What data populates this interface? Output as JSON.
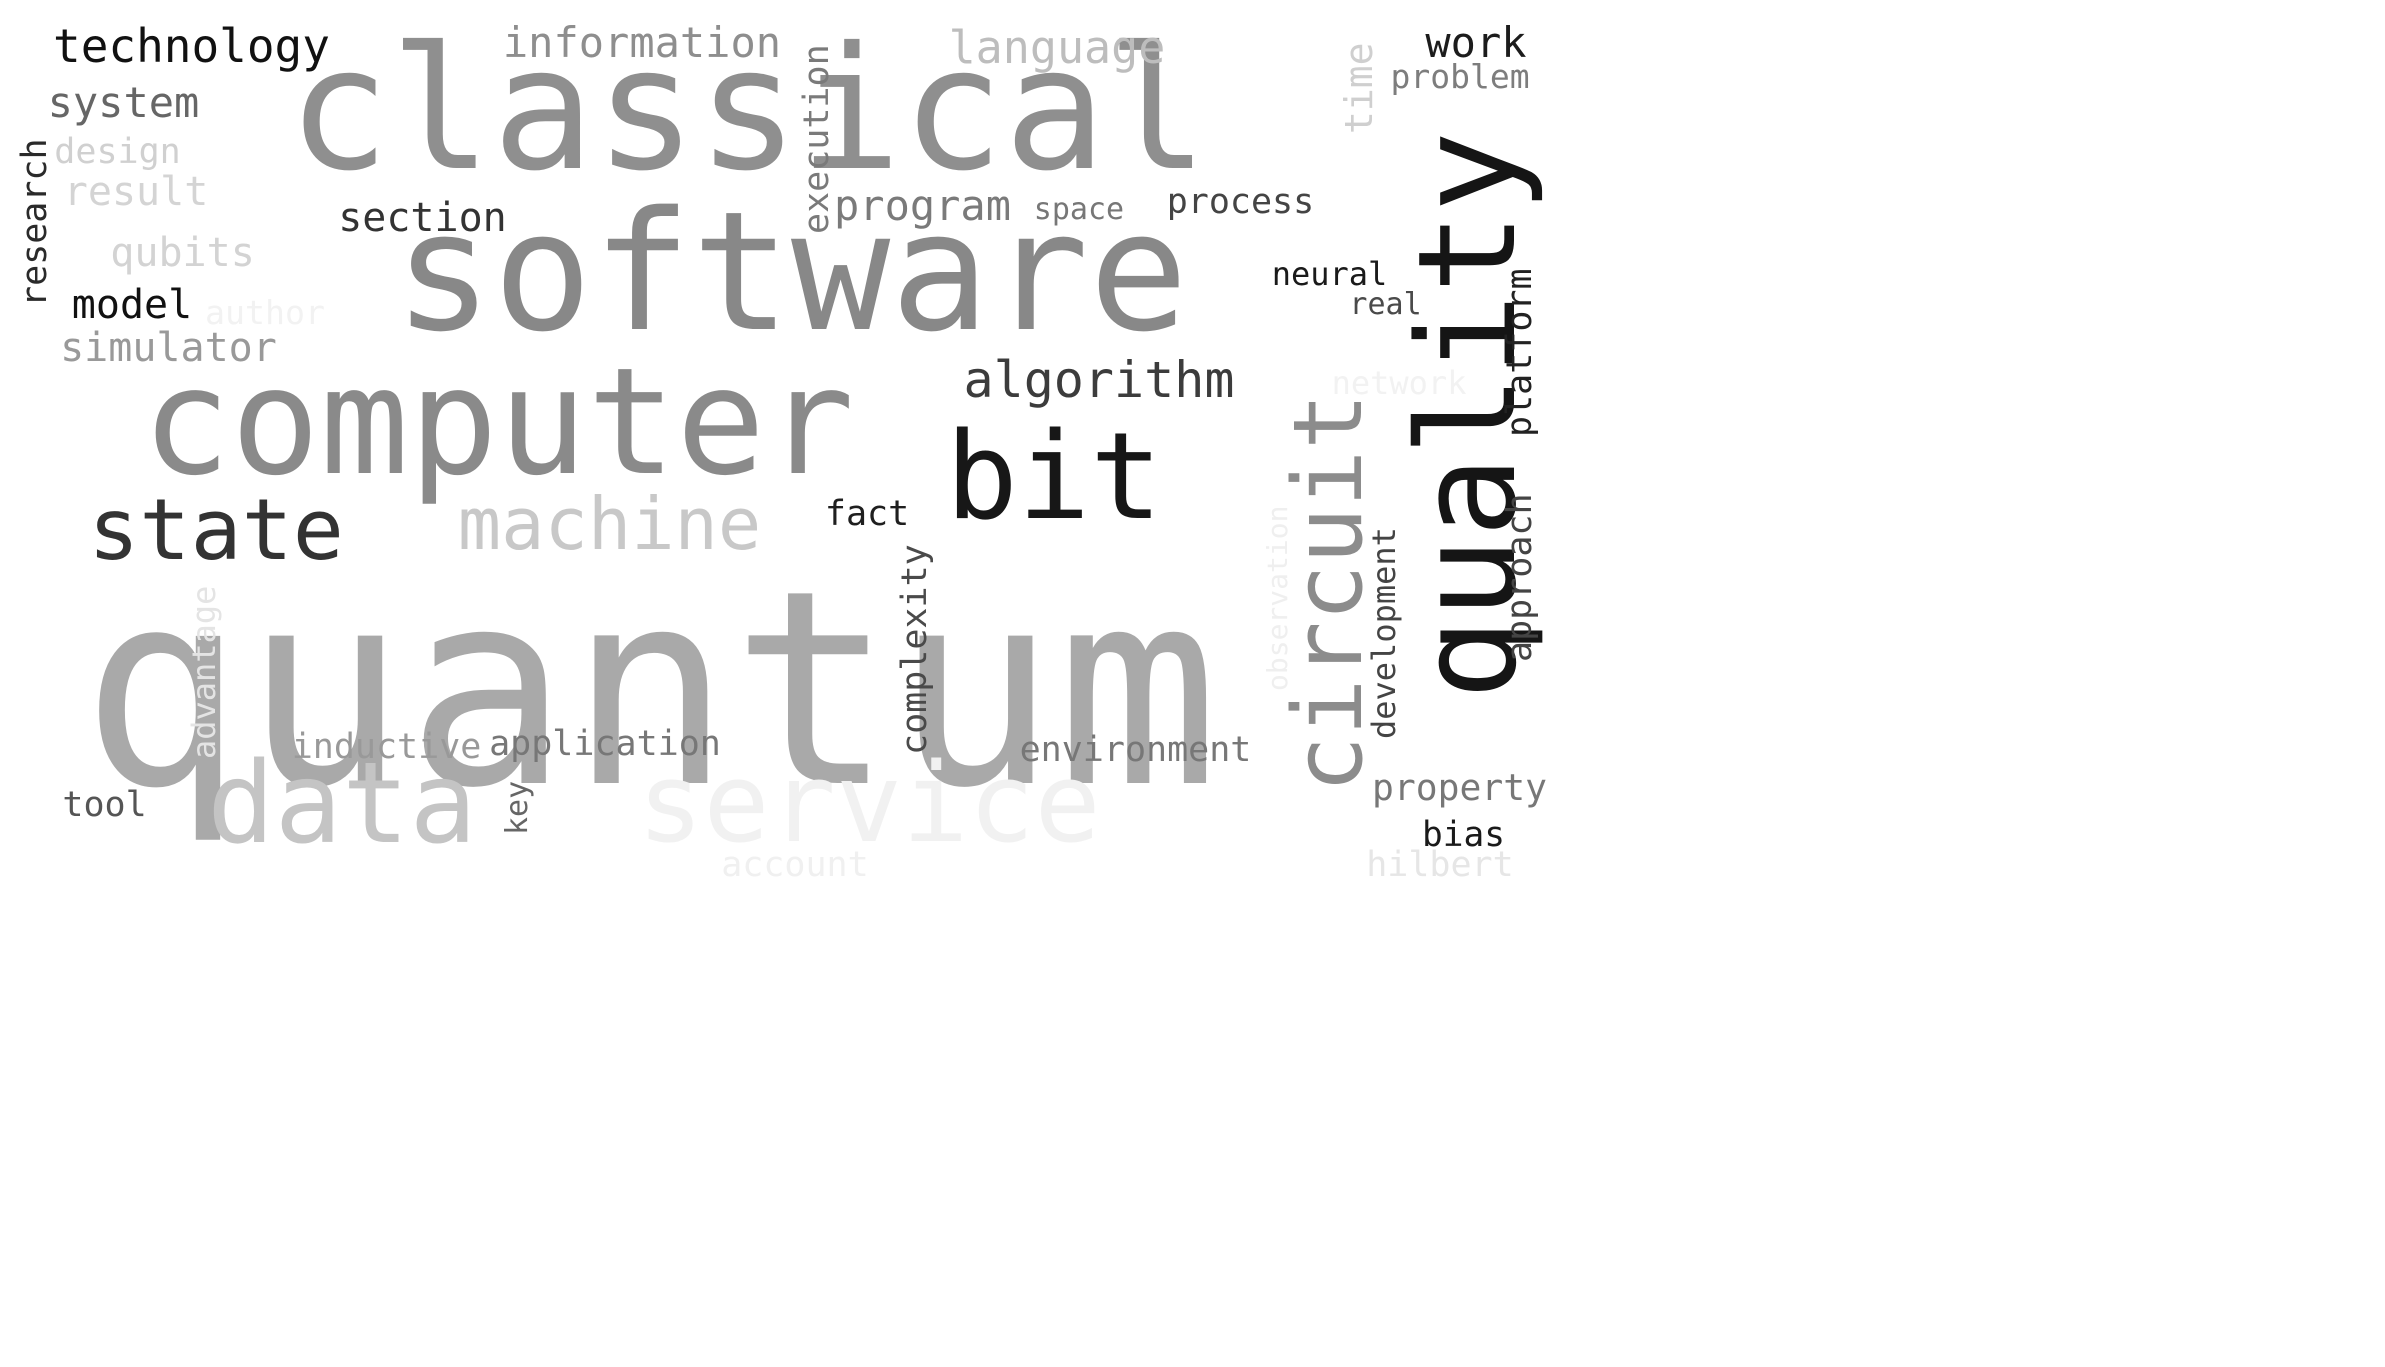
{
  "words": [
    {
      "text": "quantum",
      "color": "#a9a9a9"
    },
    {
      "text": "software",
      "color": "#888888"
    },
    {
      "text": "classical",
      "color": "#8f8f8f"
    },
    {
      "text": "computer",
      "color": "#8a8a8a"
    },
    {
      "text": "quality",
      "color": "#151515"
    },
    {
      "text": "circuit",
      "color": "#8c8c8c"
    },
    {
      "text": "bit",
      "color": "#171717"
    },
    {
      "text": "service",
      "color": "#f1f1f1"
    },
    {
      "text": "state",
      "color": "#333333"
    },
    {
      "text": "data",
      "color": "#c4c4c4"
    },
    {
      "text": "machine",
      "color": "#c8c8c8"
    },
    {
      "text": "algorithm",
      "color": "#3c3c3c"
    },
    {
      "text": "technology",
      "color": "#111111"
    },
    {
      "text": "information",
      "color": "#8e8e8e"
    },
    {
      "text": "language",
      "color": "#bdbdbd"
    },
    {
      "text": "work",
      "color": "#1c1c1c"
    },
    {
      "text": "problem",
      "color": "#7d7d7d"
    },
    {
      "text": "time",
      "color": "#cfcfcf"
    },
    {
      "text": "system",
      "color": "#666666"
    },
    {
      "text": "design",
      "color": "#d0d0d0"
    },
    {
      "text": "research",
      "color": "#2a2a2a"
    },
    {
      "text": "result",
      "color": "#d4d4d4"
    },
    {
      "text": "execution",
      "color": "#7a7a7a"
    },
    {
      "text": "program",
      "color": "#7a7a7a"
    },
    {
      "text": "space",
      "color": "#777777"
    },
    {
      "text": "process",
      "color": "#444444"
    },
    {
      "text": "section",
      "color": "#333333"
    },
    {
      "text": "qubits",
      "color": "#d3d3d3"
    },
    {
      "text": "model",
      "color": "#111111"
    },
    {
      "text": "author",
      "color": "#f2f2f2"
    },
    {
      "text": "simulator",
      "color": "#999999"
    },
    {
      "text": "neural",
      "color": "#1a1a1a"
    },
    {
      "text": "real",
      "color": "#4a4a4a"
    },
    {
      "text": "network",
      "color": "#f2f2f2"
    },
    {
      "text": "platform",
      "color": "#222222"
    },
    {
      "text": "approach",
      "color": "#444444"
    },
    {
      "text": "fact",
      "color": "#1f1f1f"
    },
    {
      "text": "complexity",
      "color": "#4a4a4a"
    },
    {
      "text": "observation",
      "color": "#efefef"
    },
    {
      "text": "development",
      "color": "#444444"
    },
    {
      "text": "advantage",
      "color": "#e4e4e4"
    },
    {
      "text": "inductive",
      "color": "#999999"
    },
    {
      "text": "application",
      "color": "#777777"
    },
    {
      "text": "environment",
      "color": "#777777"
    },
    {
      "text": "tool",
      "color": "#555555"
    },
    {
      "text": "key",
      "color": "#666666"
    },
    {
      "text": "property",
      "color": "#777777"
    },
    {
      "text": "bias",
      "color": "#1a1a1a"
    },
    {
      "text": "account",
      "color": "#f0f0f0"
    },
    {
      "text": "hilbert",
      "color": "#e6e6e6"
    }
  ]
}
